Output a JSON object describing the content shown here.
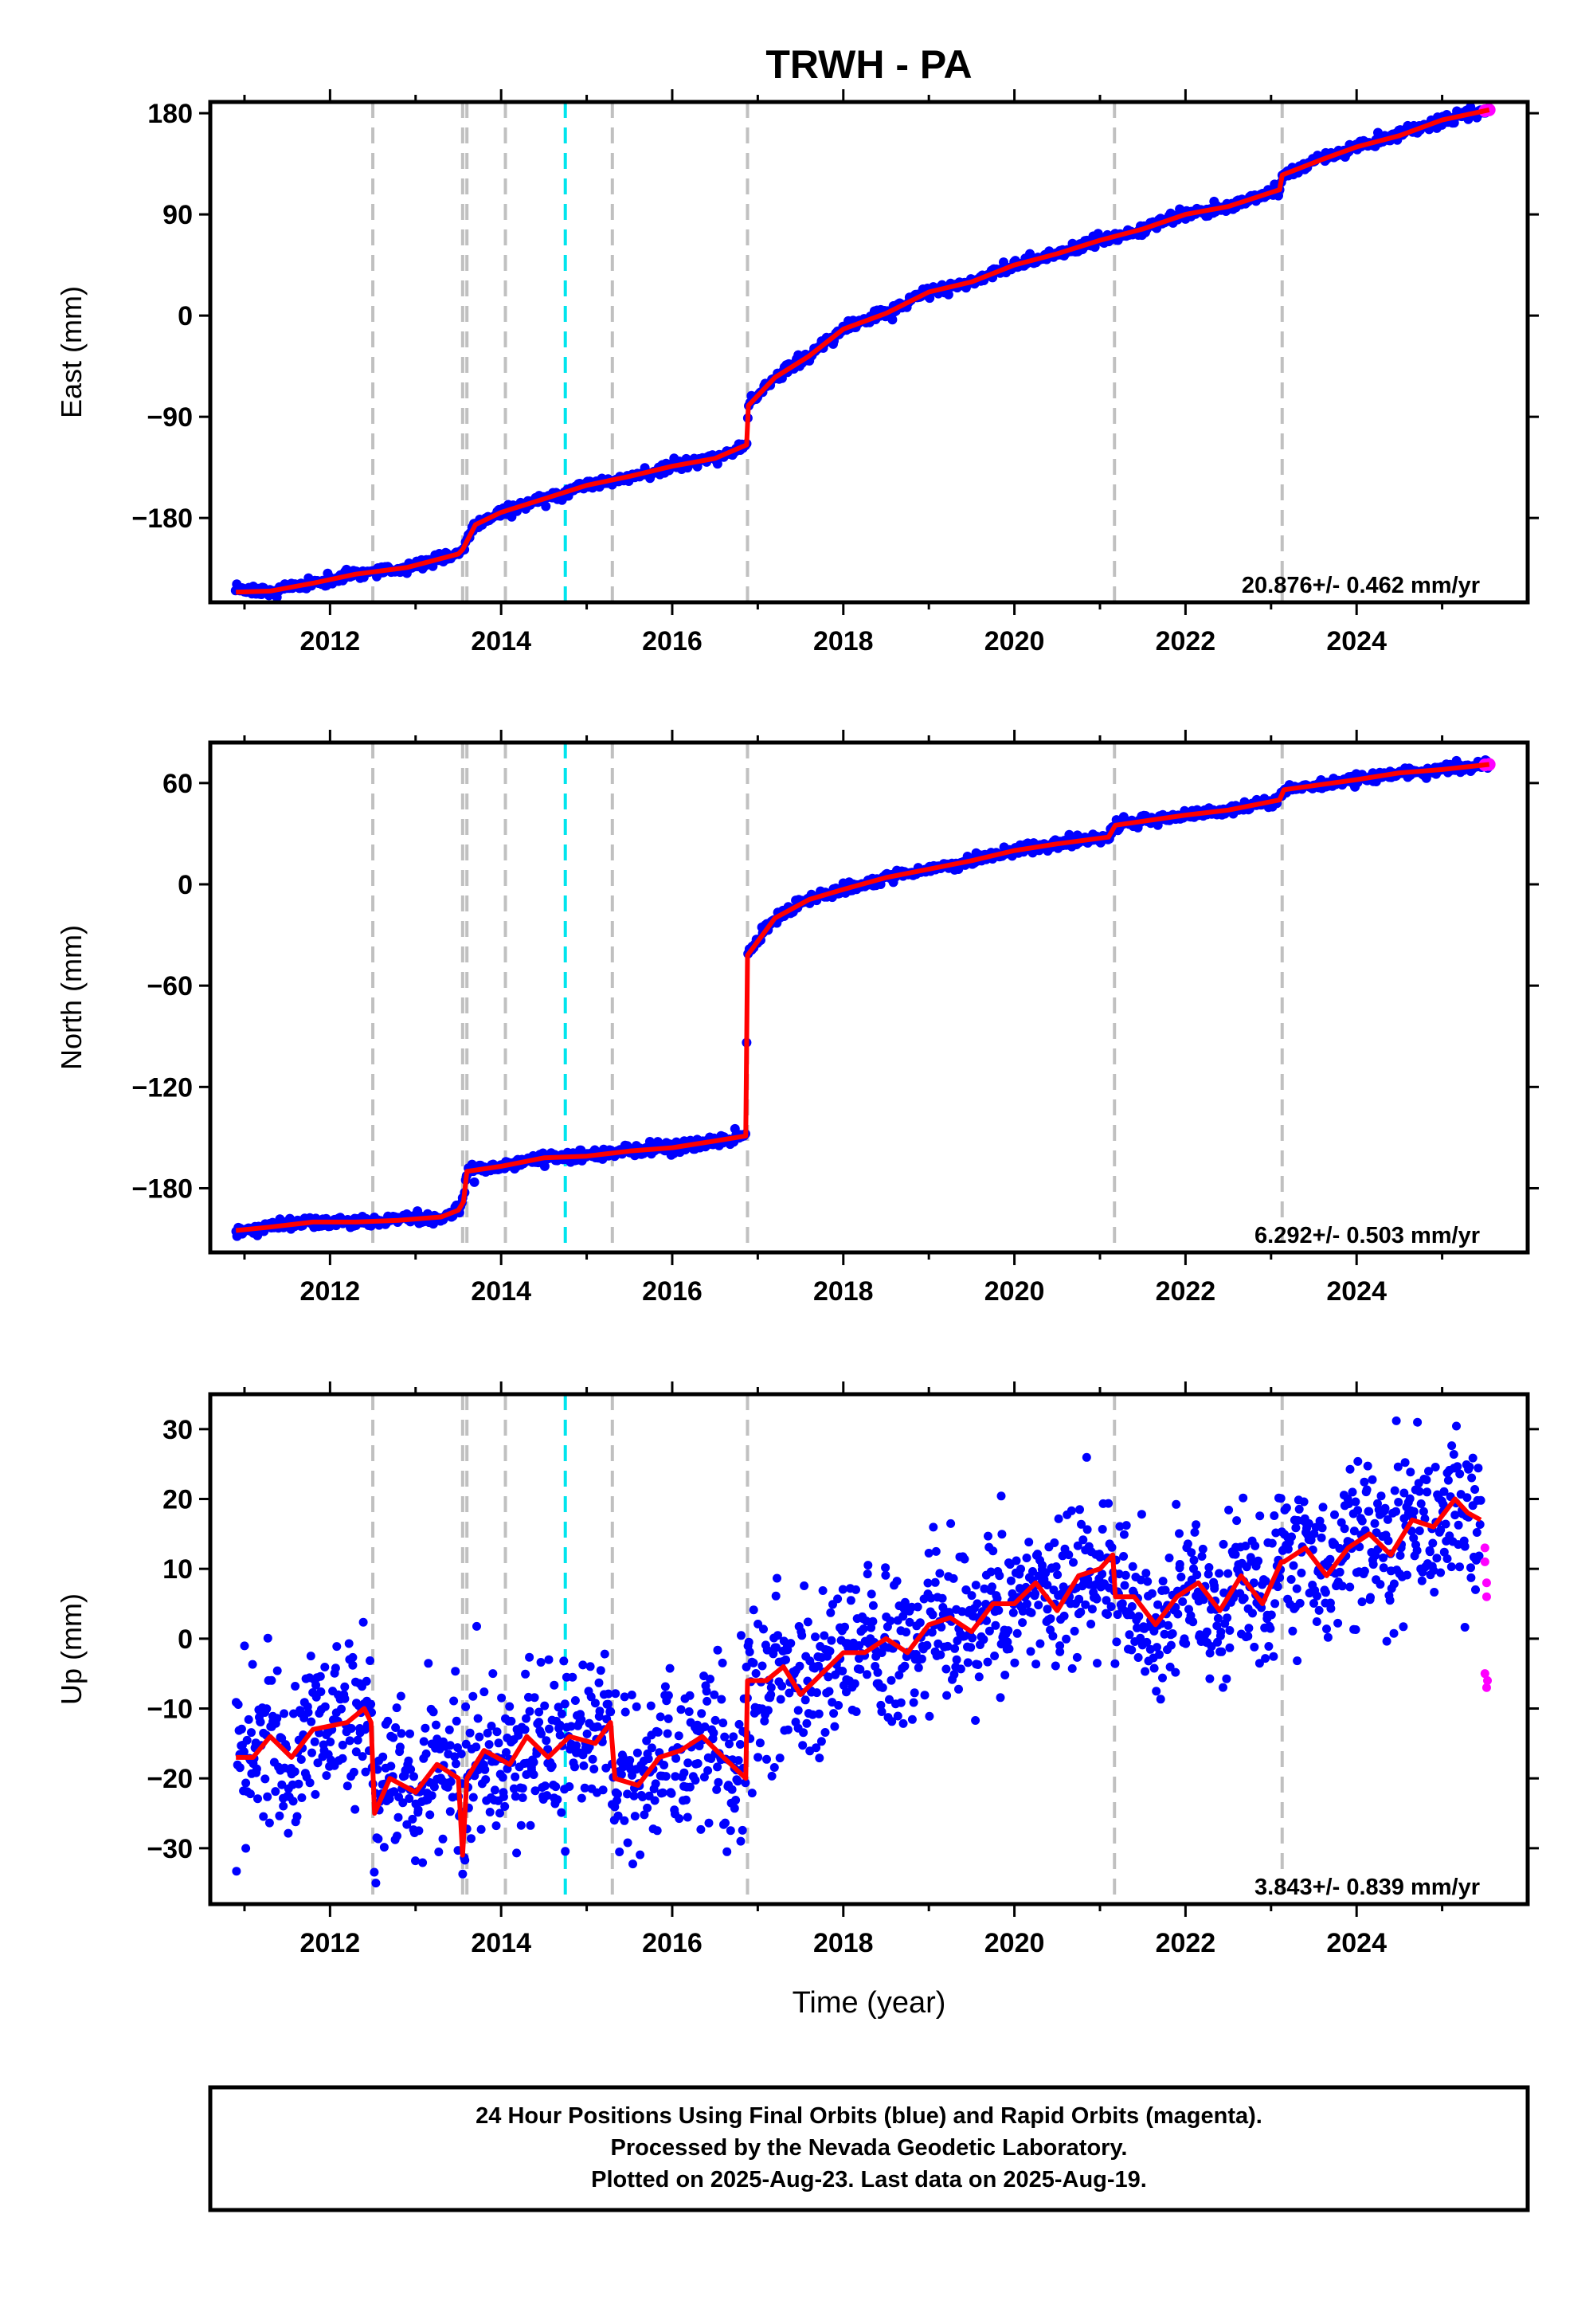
{
  "title": "TRWH - PA",
  "xlabel": "Time (year)",
  "footer": {
    "line1": "24 Hour Positions Using Final Orbits (blue) and Rapid Orbits (magenta).",
    "line2": "Processed by the Nevada Geodetic Laboratory.",
    "line3": "Plotted on 2025-Aug-23. Last data on 2025-Aug-19."
  },
  "colors": {
    "final_orbits": "#0000ff",
    "rapid_orbits": "#ff00ff",
    "model": "#ff0000",
    "event_gray": "#c0c0c0",
    "event_cyan": "#00e5ee"
  },
  "events": {
    "gray": [
      2012.5,
      2013.55,
      2013.6,
      2014.05,
      2015.3,
      2016.88,
      2021.17,
      2023.13
    ],
    "cyan": [
      2014.75
    ]
  },
  "chart_data": [
    {
      "type": "scatter",
      "ylabel": "East (mm)",
      "rate": "20.876+/- 0.462 mm/yr",
      "xlim": [
        2010.6,
        2026.0
      ],
      "ylim": [
        -255,
        190
      ],
      "xticks": [
        2012,
        2014,
        2016,
        2018,
        2020,
        2022,
        2024
      ],
      "yticks": [
        -180,
        -90,
        0,
        90,
        180
      ],
      "ytick_labels": [
        "−180",
        "−90",
        "0",
        "90",
        "180"
      ],
      "x_range": [
        2010.9,
        2025.55
      ],
      "noise": 2.5,
      "rapid_x": [
        2025.5,
        2025.55
      ],
      "model": [
        [
          2010.9,
          -246
        ],
        [
          2011.3,
          -245
        ],
        [
          2011.8,
          -238
        ],
        [
          2012.3,
          -230
        ],
        [
          2012.9,
          -224
        ],
        [
          2013.3,
          -216
        ],
        [
          2013.5,
          -212
        ],
        [
          2013.55,
          -208
        ],
        [
          2013.7,
          -186
        ],
        [
          2014.0,
          -175
        ],
        [
          2014.5,
          -163
        ],
        [
          2015.0,
          -151
        ],
        [
          2015.5,
          -143
        ],
        [
          2016.0,
          -134
        ],
        [
          2016.5,
          -127
        ],
        [
          2016.87,
          -115
        ],
        [
          2016.89,
          -80
        ],
        [
          2017.2,
          -55
        ],
        [
          2017.6,
          -36
        ],
        [
          2018.0,
          -12
        ],
        [
          2018.5,
          2
        ],
        [
          2019.0,
          21
        ],
        [
          2019.5,
          30
        ],
        [
          2020.0,
          45
        ],
        [
          2020.5,
          55
        ],
        [
          2021.0,
          67
        ],
        [
          2021.5,
          77
        ],
        [
          2022.0,
          90
        ],
        [
          2022.5,
          97
        ],
        [
          2023.1,
          112
        ],
        [
          2023.13,
          125
        ],
        [
          2023.6,
          139
        ],
        [
          2024.0,
          150
        ],
        [
          2024.5,
          160
        ],
        [
          2025.0,
          174
        ],
        [
          2025.55,
          183
        ]
      ]
    },
    {
      "type": "scatter",
      "ylabel": "North (mm)",
      "rate": "6.292+/- 0.503 mm/yr",
      "xlim": [
        2010.6,
        2026.0
      ],
      "ylim": [
        -218,
        84
      ],
      "xticks": [
        2012,
        2014,
        2016,
        2018,
        2020,
        2022,
        2024
      ],
      "yticks": [
        -180,
        -120,
        -60,
        0,
        60
      ],
      "ytick_labels": [
        "−180",
        "−120",
        "−60",
        "0",
        "60"
      ],
      "x_range": [
        2010.9,
        2025.55
      ],
      "noise": 1.6,
      "rapid_x": [
        2025.5,
        2025.55
      ],
      "model": [
        [
          2010.9,
          -205
        ],
        [
          2011.3,
          -203
        ],
        [
          2011.8,
          -200
        ],
        [
          2012.3,
          -200
        ],
        [
          2012.8,
          -199
        ],
        [
          2013.3,
          -197
        ],
        [
          2013.5,
          -193
        ],
        [
          2013.56,
          -188
        ],
        [
          2013.6,
          -170
        ],
        [
          2014.0,
          -167
        ],
        [
          2014.5,
          -162
        ],
        [
          2015.0,
          -161
        ],
        [
          2015.5,
          -158
        ],
        [
          2016.0,
          -156
        ],
        [
          2016.5,
          -152
        ],
        [
          2016.86,
          -149
        ],
        [
          2016.88,
          -42
        ],
        [
          2017.2,
          -20
        ],
        [
          2017.6,
          -9
        ],
        [
          2018.0,
          -3
        ],
        [
          2018.5,
          4
        ],
        [
          2019.0,
          9
        ],
        [
          2019.5,
          14
        ],
        [
          2020.0,
          20
        ],
        [
          2020.5,
          24
        ],
        [
          2021.1,
          28
        ],
        [
          2021.18,
          35
        ],
        [
          2022.0,
          41
        ],
        [
          2022.5,
          44
        ],
        [
          2023.1,
          50
        ],
        [
          2023.15,
          56
        ],
        [
          2024.0,
          62
        ],
        [
          2024.5,
          66
        ],
        [
          2025.0,
          68
        ],
        [
          2025.55,
          71
        ]
      ]
    },
    {
      "type": "scatter",
      "ylabel": "Up (mm)",
      "rate": "3.843+/- 0.839 mm/yr",
      "xlim": [
        2010.6,
        2026.0
      ],
      "ylim": [
        -38,
        35
      ],
      "xticks": [
        2012,
        2014,
        2016,
        2018,
        2020,
        2022,
        2024
      ],
      "yticks": [
        -30,
        -20,
        -10,
        0,
        10,
        20,
        30
      ],
      "ytick_labels": [
        "−30",
        "−20",
        "−10",
        "0",
        "10",
        "20",
        "30"
      ],
      "x_range": [
        2010.9,
        2025.45
      ],
      "noise": 5.5,
      "rapid_points": [
        [
          2025.5,
          13
        ],
        [
          2025.5,
          11
        ],
        [
          2025.52,
          8
        ],
        [
          2025.52,
          6
        ],
        [
          2025.5,
          -5
        ],
        [
          2025.52,
          -7
        ],
        [
          2025.53,
          -6
        ]
      ],
      "model": [
        [
          2010.9,
          -17
        ],
        [
          2011.1,
          -17
        ],
        [
          2011.3,
          -14
        ],
        [
          2011.55,
          -17
        ],
        [
          2011.8,
          -13
        ],
        [
          2012.2,
          -12
        ],
        [
          2012.4,
          -10
        ],
        [
          2012.48,
          -12
        ],
        [
          2012.52,
          -25
        ],
        [
          2012.7,
          -20
        ],
        [
          2013.0,
          -22
        ],
        [
          2013.25,
          -18
        ],
        [
          2013.5,
          -20
        ],
        [
          2013.55,
          -31
        ],
        [
          2013.6,
          -20
        ],
        [
          2013.8,
          -16
        ],
        [
          2014.1,
          -18
        ],
        [
          2014.3,
          -14
        ],
        [
          2014.55,
          -17
        ],
        [
          2014.8,
          -14
        ],
        [
          2015.1,
          -15
        ],
        [
          2015.28,
          -12
        ],
        [
          2015.33,
          -20
        ],
        [
          2015.6,
          -21
        ],
        [
          2015.85,
          -17
        ],
        [
          2016.1,
          -16
        ],
        [
          2016.35,
          -14
        ],
        [
          2016.6,
          -17
        ],
        [
          2016.86,
          -20
        ],
        [
          2016.88,
          -6
        ],
        [
          2017.1,
          -6
        ],
        [
          2017.3,
          -4
        ],
        [
          2017.5,
          -8
        ],
        [
          2017.75,
          -5
        ],
        [
          2018.0,
          -2
        ],
        [
          2018.25,
          -2
        ],
        [
          2018.5,
          0
        ],
        [
          2018.75,
          -2
        ],
        [
          2019.0,
          2
        ],
        [
          2019.25,
          3
        ],
        [
          2019.5,
          1
        ],
        [
          2019.75,
          5
        ],
        [
          2020.0,
          5
        ],
        [
          2020.25,
          8
        ],
        [
          2020.5,
          4
        ],
        [
          2020.75,
          9
        ],
        [
          2021.0,
          10
        ],
        [
          2021.15,
          12
        ],
        [
          2021.18,
          6
        ],
        [
          2021.4,
          6
        ],
        [
          2021.65,
          2
        ],
        [
          2021.9,
          6
        ],
        [
          2022.15,
          8
        ],
        [
          2022.4,
          4
        ],
        [
          2022.65,
          9
        ],
        [
          2022.9,
          5
        ],
        [
          2023.12,
          11
        ],
        [
          2023.15,
          11
        ],
        [
          2023.4,
          13
        ],
        [
          2023.65,
          9
        ],
        [
          2023.9,
          13
        ],
        [
          2024.15,
          15
        ],
        [
          2024.4,
          12
        ],
        [
          2024.65,
          17
        ],
        [
          2024.9,
          16
        ],
        [
          2025.15,
          20
        ],
        [
          2025.3,
          18
        ],
        [
          2025.45,
          17
        ]
      ]
    }
  ]
}
